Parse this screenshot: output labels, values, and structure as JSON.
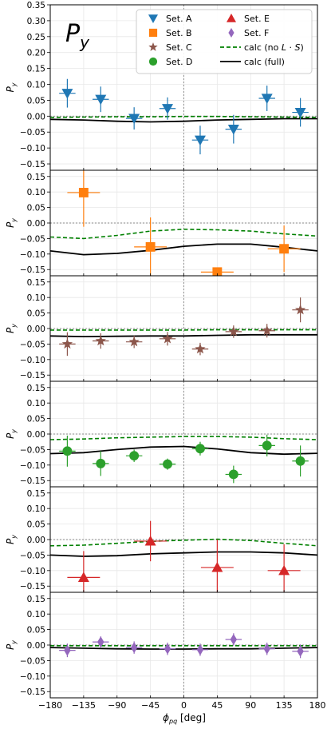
{
  "chart_data": {
    "type": "scatter",
    "title_symbol": "P",
    "title_subscript": "y",
    "xlabel_main": "ϕ",
    "xlabel_sub": "pq",
    "xlabel_unit": " [deg]",
    "ylabel_main": "P",
    "ylabel_sub": "y",
    "xlim": [
      -180,
      180
    ],
    "xticks": [
      -180,
      -135,
      -90,
      -45,
      0,
      45,
      90,
      135,
      180
    ],
    "xtick_labels": [
      "−180",
      "−135",
      "−90",
      "−45",
      "0",
      "45",
      "90",
      "135",
      "180"
    ],
    "legend": {
      "placement": "top-right of first panel",
      "entries": [
        {
          "label": "Set. A",
          "marker": "triangle-down",
          "color": "#1f77b4"
        },
        {
          "label": "Set. E",
          "marker": "triangle-up",
          "color": "#d62728"
        },
        {
          "label": "Set. B",
          "marker": "square",
          "color": "#ff7f0e"
        },
        {
          "label": "Set. F",
          "marker": "diamond",
          "color": "#9467bd"
        },
        {
          "label": "Set. C",
          "marker": "star",
          "color": "#8c564b"
        },
        {
          "label_prefix": "calc (no ",
          "label_italic": "L",
          "label_mid": " · ",
          "label_italic2": "S",
          "label_suffix": ")",
          "line": "dashed",
          "color": "#008000"
        },
        {
          "label": "Set. D",
          "marker": "circle",
          "color": "#2ca02c"
        },
        {
          "label": "calc (full)",
          "line": "solid",
          "color": "#000000"
        }
      ]
    },
    "panels": [
      {
        "name": "Set. A",
        "ylim": [
          -0.17,
          0.35
        ],
        "yticks": [
          -0.15,
          -0.1,
          -0.05,
          0.0,
          0.05,
          0.1,
          0.15,
          0.2,
          0.25,
          0.3,
          0.35
        ],
        "ytick_labels": [
          "−0.15",
          "−0.10",
          "−0.05",
          "0.00",
          "0.05",
          "0.10",
          "0.15",
          "0.20",
          "0.25",
          "0.30",
          "0.35"
        ],
        "marker": "triangle-down",
        "color": "#1f77b4",
        "points": [
          {
            "x": -157,
            "y": 0.072,
            "err": 0.045
          },
          {
            "x": -112,
            "y": 0.053,
            "err": 0.04
          },
          {
            "x": -67,
            "y": -0.007,
            "err": 0.035
          },
          {
            "x": -22,
            "y": 0.024,
            "err": 0.035
          },
          {
            "x": 22,
            "y": -0.075,
            "err": 0.045
          },
          {
            "x": 67,
            "y": -0.041,
            "err": 0.045
          },
          {
            "x": 112,
            "y": 0.056,
            "err": 0.04
          },
          {
            "x": 157,
            "y": 0.012,
            "err": 0.045
          }
        ],
        "calc_no_LS": {
          "x": [
            -180,
            -135,
            -90,
            -45,
            0,
            45,
            90,
            135,
            180
          ],
          "y": [
            -0.004,
            -0.003,
            -0.002,
            -0.002,
            -0.001,
            -0.001,
            -0.002,
            -0.003,
            -0.004
          ]
        },
        "calc_full": {
          "x": [
            -180,
            -135,
            -90,
            -45,
            0,
            45,
            90,
            135,
            180
          ],
          "y": [
            -0.01,
            -0.012,
            -0.016,
            -0.018,
            -0.016,
            -0.012,
            -0.01,
            -0.008,
            -0.008
          ]
        }
      },
      {
        "name": "Set. B",
        "ylim": [
          -0.17,
          0.17
        ],
        "yticks": [
          -0.15,
          -0.1,
          -0.05,
          0.0,
          0.05,
          0.1,
          0.15
        ],
        "ytick_labels": [
          "−0.15",
          "−0.10",
          "−0.05",
          "0.00",
          "0.05",
          "0.10",
          "0.15"
        ],
        "marker": "square",
        "color": "#ff7f0e",
        "points": [
          {
            "x": -135,
            "y": 0.098,
            "err": 0.11,
            "xerr": 22
          },
          {
            "x": -45,
            "y": -0.077,
            "err": 0.095,
            "xerr": 22
          },
          {
            "x": 45,
            "y": -0.158,
            "err": 0.015,
            "xerr": 22
          },
          {
            "x": 135,
            "y": -0.083,
            "err": 0.075,
            "xerr": 22
          }
        ],
        "calc_no_LS": {
          "x": [
            -180,
            -135,
            -90,
            -45,
            0,
            45,
            90,
            135,
            180
          ],
          "y": [
            -0.045,
            -0.05,
            -0.04,
            -0.026,
            -0.02,
            -0.022,
            -0.026,
            -0.035,
            -0.042
          ]
        },
        "calc_full": {
          "x": [
            -180,
            -135,
            -90,
            -45,
            0,
            45,
            90,
            135,
            180
          ],
          "y": [
            -0.09,
            -0.102,
            -0.098,
            -0.088,
            -0.075,
            -0.068,
            -0.068,
            -0.078,
            -0.09
          ]
        }
      },
      {
        "name": "Set. C",
        "ylim": [
          -0.17,
          0.17
        ],
        "yticks": [
          -0.15,
          -0.1,
          -0.05,
          0.0,
          0.05,
          0.1,
          0.15
        ],
        "ytick_labels": [
          "−0.15",
          "−0.10",
          "−0.05",
          "0.00",
          "0.05",
          "0.10",
          "0.15"
        ],
        "marker": "star",
        "color": "#8c564b",
        "points": [
          {
            "x": -157,
            "y": -0.05,
            "err": 0.038
          },
          {
            "x": -112,
            "y": -0.04,
            "err": 0.025
          },
          {
            "x": -67,
            "y": -0.043,
            "err": 0.02
          },
          {
            "x": -22,
            "y": -0.033,
            "err": 0.022
          },
          {
            "x": 22,
            "y": -0.066,
            "err": 0.02
          },
          {
            "x": 67,
            "y": -0.01,
            "err": 0.02
          },
          {
            "x": 112,
            "y": -0.007,
            "err": 0.022
          },
          {
            "x": 157,
            "y": 0.06,
            "err": 0.04
          }
        ],
        "calc_no_LS": {
          "x": [
            -180,
            -135,
            -90,
            -45,
            0,
            45,
            90,
            135,
            180
          ],
          "y": [
            -0.005,
            -0.005,
            -0.005,
            -0.005,
            -0.005,
            -0.004,
            -0.004,
            -0.004,
            -0.004
          ]
        },
        "calc_full": {
          "x": [
            -180,
            -135,
            -90,
            -45,
            0,
            45,
            90,
            135,
            180
          ],
          "y": [
            -0.024,
            -0.026,
            -0.025,
            -0.024,
            -0.024,
            -0.022,
            -0.02,
            -0.02,
            -0.02
          ]
        }
      },
      {
        "name": "Set. D",
        "ylim": [
          -0.17,
          0.17
        ],
        "yticks": [
          -0.15,
          -0.1,
          -0.05,
          0.0,
          0.05,
          0.1,
          0.15
        ],
        "ytick_labels": [
          "−0.15",
          "−0.10",
          "−0.05",
          "0.00",
          "0.05",
          "0.10",
          "0.15"
        ],
        "marker": "circle",
        "color": "#2ca02c",
        "points": [
          {
            "x": -157,
            "y": -0.055,
            "err": 0.05
          },
          {
            "x": -112,
            "y": -0.095,
            "err": 0.04
          },
          {
            "x": -67,
            "y": -0.07,
            "err": 0.02
          },
          {
            "x": -22,
            "y": -0.097,
            "err": 0.018
          },
          {
            "x": 22,
            "y": -0.047,
            "err": 0.022
          },
          {
            "x": 67,
            "y": -0.13,
            "err": 0.028
          },
          {
            "x": 112,
            "y": -0.037,
            "err": 0.035
          },
          {
            "x": 157,
            "y": -0.087,
            "err": 0.05
          }
        ],
        "calc_no_LS": {
          "x": [
            -180,
            -135,
            -90,
            -45,
            0,
            45,
            90,
            135,
            180
          ],
          "y": [
            -0.018,
            -0.016,
            -0.012,
            -0.01,
            -0.008,
            -0.008,
            -0.01,
            -0.015,
            -0.018
          ]
        },
        "calc_full": {
          "x": [
            -180,
            -135,
            -90,
            -45,
            0,
            45,
            90,
            135,
            180
          ],
          "y": [
            -0.063,
            -0.06,
            -0.05,
            -0.042,
            -0.04,
            -0.048,
            -0.06,
            -0.065,
            -0.062
          ]
        }
      },
      {
        "name": "Set. E",
        "ylim": [
          -0.17,
          0.17
        ],
        "yticks": [
          -0.15,
          -0.1,
          -0.05,
          0.0,
          0.05,
          0.1,
          0.15
        ],
        "ytick_labels": [
          "−0.15",
          "−0.10",
          "−0.05",
          "0.00",
          "0.05",
          "0.10",
          "0.15"
        ],
        "marker": "triangle-up",
        "color": "#d62728",
        "points": [
          {
            "x": -135,
            "y": -0.122,
            "err": 0.085,
            "xerr": 22
          },
          {
            "x": -45,
            "y": -0.005,
            "err": 0.065,
            "xerr": 22
          },
          {
            "x": 45,
            "y": -0.09,
            "err": 0.09,
            "xerr": 22
          },
          {
            "x": 135,
            "y": -0.1,
            "err": 0.085,
            "xerr": 22
          }
        ],
        "calc_no_LS": {
          "x": [
            -180,
            -135,
            -90,
            -45,
            0,
            45,
            90,
            135,
            180
          ],
          "y": [
            -0.02,
            -0.018,
            -0.012,
            -0.006,
            -0.002,
            0.001,
            -0.003,
            -0.012,
            -0.02
          ]
        },
        "calc_full": {
          "x": [
            -180,
            -135,
            -90,
            -45,
            0,
            45,
            90,
            135,
            180
          ],
          "y": [
            -0.05,
            -0.054,
            -0.052,
            -0.046,
            -0.043,
            -0.04,
            -0.04,
            -0.043,
            -0.05
          ]
        }
      },
      {
        "name": "Set. F",
        "ylim": [
          -0.17,
          0.17
        ],
        "yticks": [
          -0.15,
          -0.1,
          -0.05,
          0.0,
          0.05,
          0.1,
          0.15
        ],
        "ytick_labels": [
          "−0.15",
          "−0.10",
          "−0.05",
          "0.00",
          "0.05",
          "0.10",
          "0.15"
        ],
        "marker": "diamond",
        "color": "#9467bd",
        "points": [
          {
            "x": -157,
            "y": -0.017,
            "err": 0.022
          },
          {
            "x": -112,
            "y": 0.01,
            "err": 0.018
          },
          {
            "x": -67,
            "y": -0.008,
            "err": 0.02
          },
          {
            "x": -22,
            "y": -0.012,
            "err": 0.02
          },
          {
            "x": 22,
            "y": -0.015,
            "err": 0.02
          },
          {
            "x": 67,
            "y": 0.018,
            "err": 0.02
          },
          {
            "x": 112,
            "y": -0.012,
            "err": 0.02
          },
          {
            "x": 157,
            "y": -0.02,
            "err": 0.022
          }
        ],
        "calc_no_LS": {
          "x": [
            -180,
            -135,
            -90,
            -45,
            0,
            45,
            90,
            135,
            180
          ],
          "y": [
            -0.002,
            -0.002,
            -0.002,
            -0.002,
            -0.002,
            -0.002,
            -0.002,
            -0.002,
            -0.002
          ]
        },
        "calc_full": {
          "x": [
            -180,
            -135,
            -90,
            -45,
            0,
            45,
            90,
            135,
            180
          ],
          "y": [
            -0.008,
            -0.01,
            -0.012,
            -0.013,
            -0.013,
            -0.012,
            -0.012,
            -0.01,
            -0.008
          ]
        }
      }
    ]
  }
}
